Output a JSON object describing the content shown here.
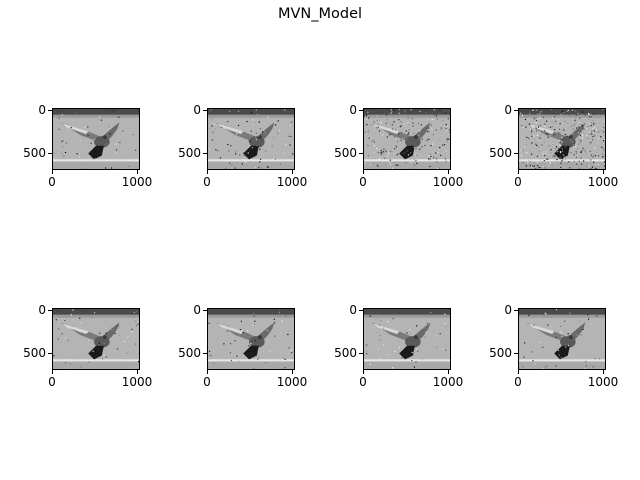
{
  "figure": {
    "title": "MVN_Model"
  },
  "axes": {
    "y_ticks": [
      "0",
      "500"
    ],
    "x_ticks": [
      "0",
      "1000"
    ]
  },
  "panels": [
    {
      "row": 1,
      "col": 1,
      "noise_level": 0.1
    },
    {
      "row": 1,
      "col": 2,
      "noise_level": 0.2
    },
    {
      "row": 1,
      "col": 3,
      "noise_level": 0.45
    },
    {
      "row": 1,
      "col": 4,
      "noise_level": 0.75
    },
    {
      "row": 2,
      "col": 1,
      "noise_level": 0.12
    },
    {
      "row": 2,
      "col": 2,
      "noise_level": 0.12
    },
    {
      "row": 2,
      "col": 3,
      "noise_level": 0.12
    },
    {
      "row": 2,
      "col": 4,
      "noise_level": 0.12
    }
  ],
  "image_subject_icon": "pigeon-in-flight-grayscale"
}
